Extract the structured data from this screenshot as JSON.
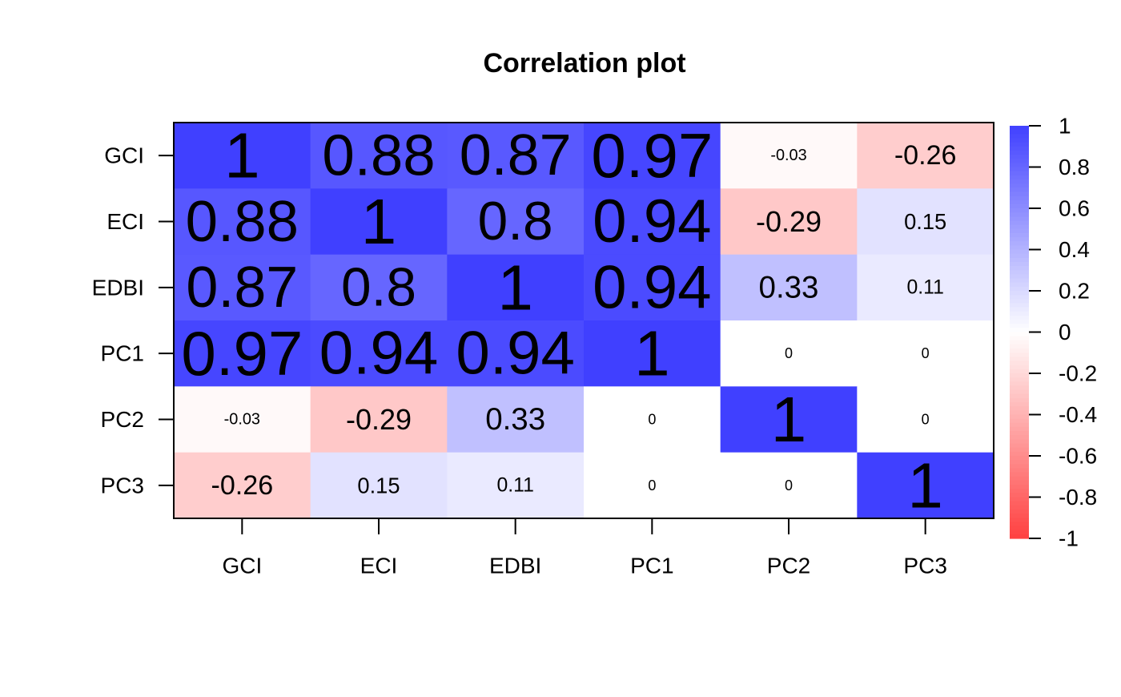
{
  "chart_data": {
    "type": "heatmap",
    "title": "Correlation plot",
    "xlabel": "",
    "ylabel": "",
    "rows": [
      "GCI",
      "ECI",
      "EDBI",
      "PC1",
      "PC2",
      "PC3"
    ],
    "cols": [
      "GCI",
      "ECI",
      "EDBI",
      "PC1",
      "PC2",
      "PC3"
    ],
    "values": [
      [
        1,
        0.88,
        0.87,
        0.97,
        -0.03,
        -0.26
      ],
      [
        0.88,
        1,
        0.8,
        0.94,
        -0.29,
        0.15
      ],
      [
        0.87,
        0.8,
        1,
        0.94,
        0.33,
        0.11
      ],
      [
        0.97,
        0.94,
        0.94,
        1,
        0,
        0
      ],
      [
        -0.03,
        -0.29,
        0.33,
        0,
        1,
        0
      ],
      [
        -0.26,
        0.15,
        0.11,
        0,
        0,
        1
      ]
    ],
    "labels": [
      [
        "1",
        "0.88",
        "0.87",
        "0.97",
        "-0.03",
        "-0.26"
      ],
      [
        "0.88",
        "1",
        "0.8",
        "0.94",
        "-0.29",
        "0.15"
      ],
      [
        "0.87",
        "0.8",
        "1",
        "0.94",
        "0.33",
        "0.11"
      ],
      [
        "0.97",
        "0.94",
        "0.94",
        "1",
        "0",
        "0"
      ],
      [
        "-0.03",
        "-0.29",
        "0.33",
        "0",
        "1",
        "0"
      ],
      [
        "-0.26",
        "0.15",
        "0.11",
        "0",
        "0",
        "1"
      ]
    ],
    "color_range": [
      -1,
      1
    ],
    "colorbar_ticks": [
      "1",
      "0.8",
      "0.6",
      "0.4",
      "0.2",
      "0",
      "-0.2",
      "-0.4",
      "-0.6",
      "-0.8",
      "-1"
    ],
    "colors": {
      "positive": "#4040ff",
      "neutral": "#ffffff",
      "negative": "#ff4040",
      "text": "#000000",
      "axis": "#000000"
    },
    "legend": "right"
  }
}
